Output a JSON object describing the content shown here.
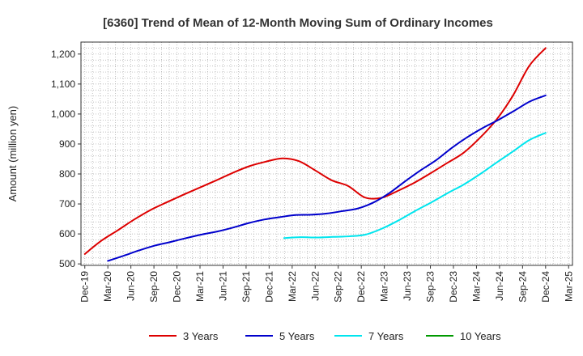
{
  "chart_data": {
    "type": "line",
    "title": "[6360]  Trend of Mean of 12-Month Moving Sum of Ordinary Incomes",
    "xlabel": "",
    "ylabel": "Amount (million yen)",
    "ylim": [
      495,
      1240
    ],
    "y_ticks": [
      500,
      600,
      700,
      800,
      900,
      1000,
      1100,
      1200
    ],
    "y_tick_labels": [
      "500",
      "600",
      "700",
      "800",
      "900",
      "1,000",
      "1,100",
      "1,200"
    ],
    "x_tick_labels": [
      "Dec-19",
      "Mar-20",
      "Jun-20",
      "Sep-20",
      "Dec-20",
      "Mar-21",
      "Jun-21",
      "Sep-21",
      "Dec-21",
      "Mar-22",
      "Jun-22",
      "Sep-22",
      "Dec-22",
      "Mar-23",
      "Jun-23",
      "Sep-23",
      "Dec-23",
      "Mar-24",
      "Jun-24",
      "Sep-24",
      "Dec-24",
      "Mar-25"
    ],
    "grid": true,
    "legend_position": "bottom",
    "series": [
      {
        "name": "3 Years",
        "color": "#dd0000",
        "start_index": 0,
        "values": [
          533,
          577,
          612,
          648,
          680,
          706,
          731,
          755,
          779,
          804,
          826,
          841,
          852,
          843,
          812,
          779,
          760,
          722,
          720,
          743,
          770,
          802,
          836,
          870,
          920,
          980,
          1060,
          1160,
          1220
        ]
      },
      {
        "name": "5 Years",
        "color": "#0000cc",
        "start_index": 1,
        "values": [
          510,
          527,
          545,
          561,
          573,
          586,
          598,
          608,
          621,
          636,
          648,
          656,
          663,
          664,
          668,
          676,
          685,
          705,
          736,
          775,
          812,
          846,
          887,
          923,
          954,
          981,
          1011,
          1042,
          1062
        ]
      },
      {
        "name": "7 Years",
        "color": "#00e5ee",
        "start_index": 8.65,
        "values": [
          586,
          589,
          588,
          590,
          592,
          598,
          618,
          645,
          676,
          705,
          736,
          765,
          800,
          838,
          875,
          913,
          937
        ]
      },
      {
        "name": "10 Years",
        "color": "#009900",
        "start_index": 0,
        "values": []
      }
    ]
  }
}
